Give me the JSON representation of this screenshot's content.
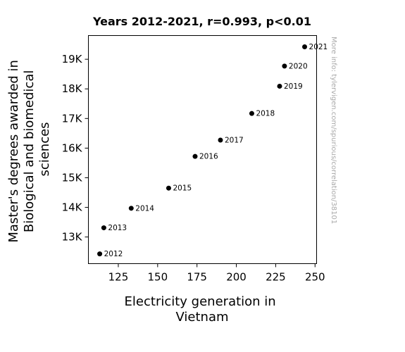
{
  "chart_data": {
    "type": "scatter",
    "title": "Years 2012-2021, r=0.993, p<0.01",
    "xlabel_lines": [
      "Electricity generation in",
      "Vietnam"
    ],
    "ylabel_lines": [
      "Master's degrees awarded in",
      "Biological and biomedical",
      "sciences"
    ],
    "xlim": [
      106,
      251
    ],
    "ylim": [
      12100,
      19800
    ],
    "x_ticks": [
      {
        "value": 125,
        "label": "125"
      },
      {
        "value": 150,
        "label": "150"
      },
      {
        "value": 175,
        "label": "175"
      },
      {
        "value": 200,
        "label": "200"
      },
      {
        "value": 225,
        "label": "225"
      },
      {
        "value": 250,
        "label": "250"
      }
    ],
    "y_ticks": [
      {
        "value": 13000,
        "label": "13K"
      },
      {
        "value": 14000,
        "label": "14K"
      },
      {
        "value": 15000,
        "label": "15K"
      },
      {
        "value": 16000,
        "label": "16K"
      },
      {
        "value": 17000,
        "label": "17K"
      },
      {
        "value": 18000,
        "label": "18K"
      },
      {
        "value": 19000,
        "label": "19K"
      }
    ],
    "points": [
      {
        "label": "2012",
        "x": 113.2,
        "y": 12430
      },
      {
        "label": "2013",
        "x": 115.8,
        "y": 13310
      },
      {
        "label": "2014",
        "x": 133.2,
        "y": 13970
      },
      {
        "label": "2015",
        "x": 157.0,
        "y": 14650
      },
      {
        "label": "2016",
        "x": 173.8,
        "y": 15720
      },
      {
        "label": "2017",
        "x": 189.9,
        "y": 16270
      },
      {
        "label": "2018",
        "x": 209.8,
        "y": 17170
      },
      {
        "label": "2019",
        "x": 227.5,
        "y": 18090
      },
      {
        "label": "2020",
        "x": 230.6,
        "y": 18770
      },
      {
        "label": "2021",
        "x": 243.4,
        "y": 19420
      }
    ],
    "marker_color": "#000000",
    "grid": false,
    "watermark": "More info: tylervigen.com/spurious/correlation/38101"
  }
}
